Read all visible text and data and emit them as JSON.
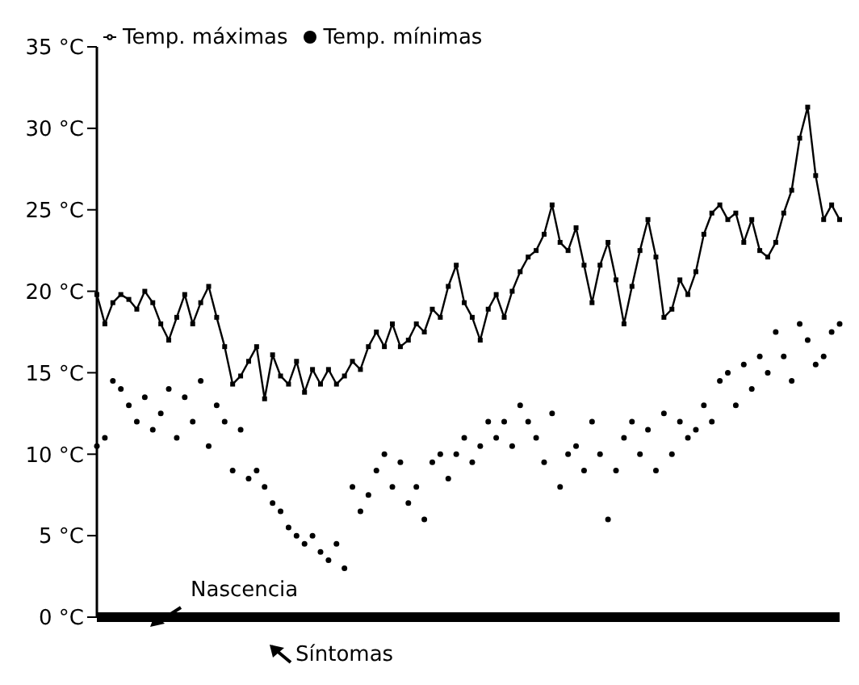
{
  "chart_data": {
    "type": "line",
    "categories": [
      null,
      null,
      null,
      null,
      null,
      null,
      null,
      null,
      null,
      null,
      null,
      null,
      null,
      null,
      null,
      null,
      null,
      null,
      null,
      null,
      null,
      null,
      null,
      null,
      null,
      null,
      null,
      null,
      null,
      null,
      null,
      null,
      null,
      null,
      null,
      null,
      null,
      null,
      null,
      null,
      null,
      null,
      null,
      null,
      null,
      null,
      null,
      null,
      null,
      null,
      null,
      null,
      null,
      null,
      null,
      null,
      null,
      null,
      null,
      null,
      null,
      null,
      null,
      null,
      null,
      null,
      null,
      null,
      null,
      null,
      null,
      null,
      null,
      null,
      null,
      null,
      null,
      null,
      null,
      null,
      null,
      null,
      null,
      null,
      null,
      null,
      null,
      null,
      null,
      null,
      null,
      null,
      null,
      null
    ],
    "series": [
      {
        "name": "Temp. máximas",
        "color": "#000000",
        "marker": "square",
        "values": [
          19.8,
          18.0,
          19.3,
          19.8,
          19.5,
          18.9,
          20.0,
          19.3,
          18.0,
          17.0,
          18.4,
          19.8,
          18.0,
          19.3,
          20.3,
          18.4,
          16.6,
          14.3,
          14.8,
          15.7,
          16.6,
          13.4,
          16.1,
          14.8,
          14.3,
          15.7,
          13.8,
          15.2,
          14.3,
          15.2,
          14.3,
          14.8,
          15.7,
          15.2,
          16.6,
          17.5,
          16.6,
          18.0,
          16.6,
          17.0,
          18.0,
          17.5,
          18.9,
          18.4,
          20.3,
          21.6,
          19.3,
          18.4,
          17.0,
          18.9,
          19.8,
          18.4,
          20.0,
          21.2,
          22.1,
          22.5,
          23.5,
          25.3,
          23.0,
          22.5,
          23.9,
          21.6,
          19.3,
          21.6,
          23.0,
          20.7,
          18.0,
          20.3,
          22.5,
          24.4,
          22.1,
          18.4,
          18.9,
          20.7,
          19.8,
          21.2,
          23.5,
          24.8,
          25.3,
          24.4,
          24.8,
          23.0,
          24.4,
          22.5,
          22.1,
          23.0,
          24.8,
          26.2,
          29.4,
          31.3,
          27.1,
          24.4,
          25.3,
          24.4
        ]
      },
      {
        "name": "Temp. mínimas",
        "type": "scatter",
        "color": "#000000",
        "marker": "circle",
        "values": [
          10.5,
          11,
          14.5,
          14,
          13,
          12,
          13.5,
          11.5,
          12.5,
          14,
          11,
          13.5,
          12,
          14.5,
          10.5,
          13,
          12,
          9,
          11.5,
          8.5,
          9,
          8,
          7,
          6.5,
          5.5,
          5,
          4.5,
          5,
          4,
          3.5,
          4.5,
          3,
          8,
          6.5,
          7.5,
          9,
          10,
          8,
          9.5,
          7,
          8,
          6,
          9.5,
          10,
          8.5,
          10,
          11,
          9.5,
          10.5,
          12,
          11,
          12,
          10.5,
          13,
          12,
          11,
          9.5,
          12.5,
          8,
          10,
          10.5,
          9,
          12,
          10,
          6,
          9,
          11,
          12,
          10,
          11.5,
          9,
          12.5,
          10,
          12,
          11,
          11.5,
          13,
          12,
          14.5,
          15,
          13,
          15.5,
          14,
          16,
          15,
          17.5,
          16,
          14.5,
          18,
          17,
          15.5,
          16,
          17.5,
          18
        ]
      }
    ],
    "ylim": [
      0,
      35
    ],
    "yticks": [
      {
        "value": 0,
        "label": "0 °C"
      },
      {
        "value": 5,
        "label": "5 °C"
      },
      {
        "value": 10,
        "label": "10 °C"
      },
      {
        "value": 15,
        "label": "15 °C"
      },
      {
        "value": 20,
        "label": "20 °C"
      },
      {
        "value": 25,
        "label": "25 °C"
      },
      {
        "value": 30,
        "label": "30 °C"
      },
      {
        "value": 35,
        "label": "35 °C"
      }
    ],
    "tick_labels": "y",
    "grid": false,
    "legend": "top left",
    "annotations": [
      "Nascencia",
      "Síntomas"
    ]
  }
}
